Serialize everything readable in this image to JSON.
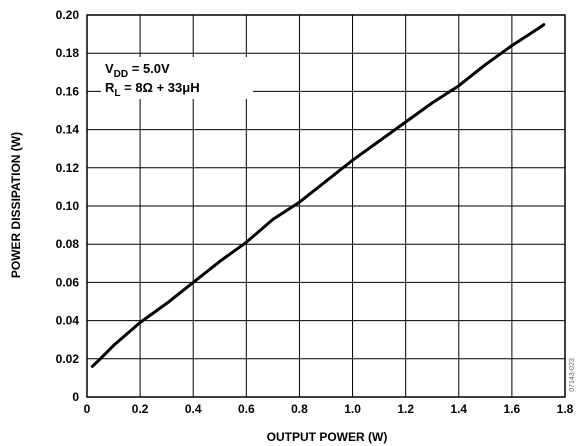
{
  "chart_data": {
    "type": "line",
    "title": "",
    "xlabel": "OUTPUT POWER (W)",
    "ylabel": "POWER DISSIPATION (W)",
    "xlim": [
      0,
      1.8
    ],
    "ylim": [
      0,
      0.2
    ],
    "x_ticks": [
      "0",
      "0.2",
      "0.4",
      "0.6",
      "0.8",
      "1.0",
      "1.2",
      "1.4",
      "1.6",
      "1.8"
    ],
    "y_ticks": [
      "0",
      "0.02",
      "0.04",
      "0.06",
      "0.08",
      "0.10",
      "0.12",
      "0.14",
      "0.16",
      "0.18",
      "0.20"
    ],
    "grid": true,
    "series": [
      {
        "x": [
          0.02,
          0.05,
          0.1,
          0.15,
          0.2,
          0.3,
          0.4,
          0.5,
          0.6,
          0.7,
          0.8,
          0.9,
          1.0,
          1.1,
          1.2,
          1.3,
          1.4,
          1.5,
          1.6,
          1.7,
          1.72
        ],
        "y": [
          0.016,
          0.02,
          0.027,
          0.033,
          0.039,
          0.049,
          0.06,
          0.071,
          0.081,
          0.093,
          0.102,
          0.113,
          0.124,
          0.134,
          0.144,
          0.154,
          0.163,
          0.174,
          0.184,
          0.193,
          0.195
        ],
        "color": "#000000"
      }
    ],
    "annotation": {
      "vdd_main": "V",
      "vdd_sub": "DD",
      "vdd_value": " = 5.0V",
      "rl_main": "R",
      "rl_sub": "L",
      "rl_value": " = 8Ω + 33μH"
    },
    "figure_code": "07143-023"
  }
}
